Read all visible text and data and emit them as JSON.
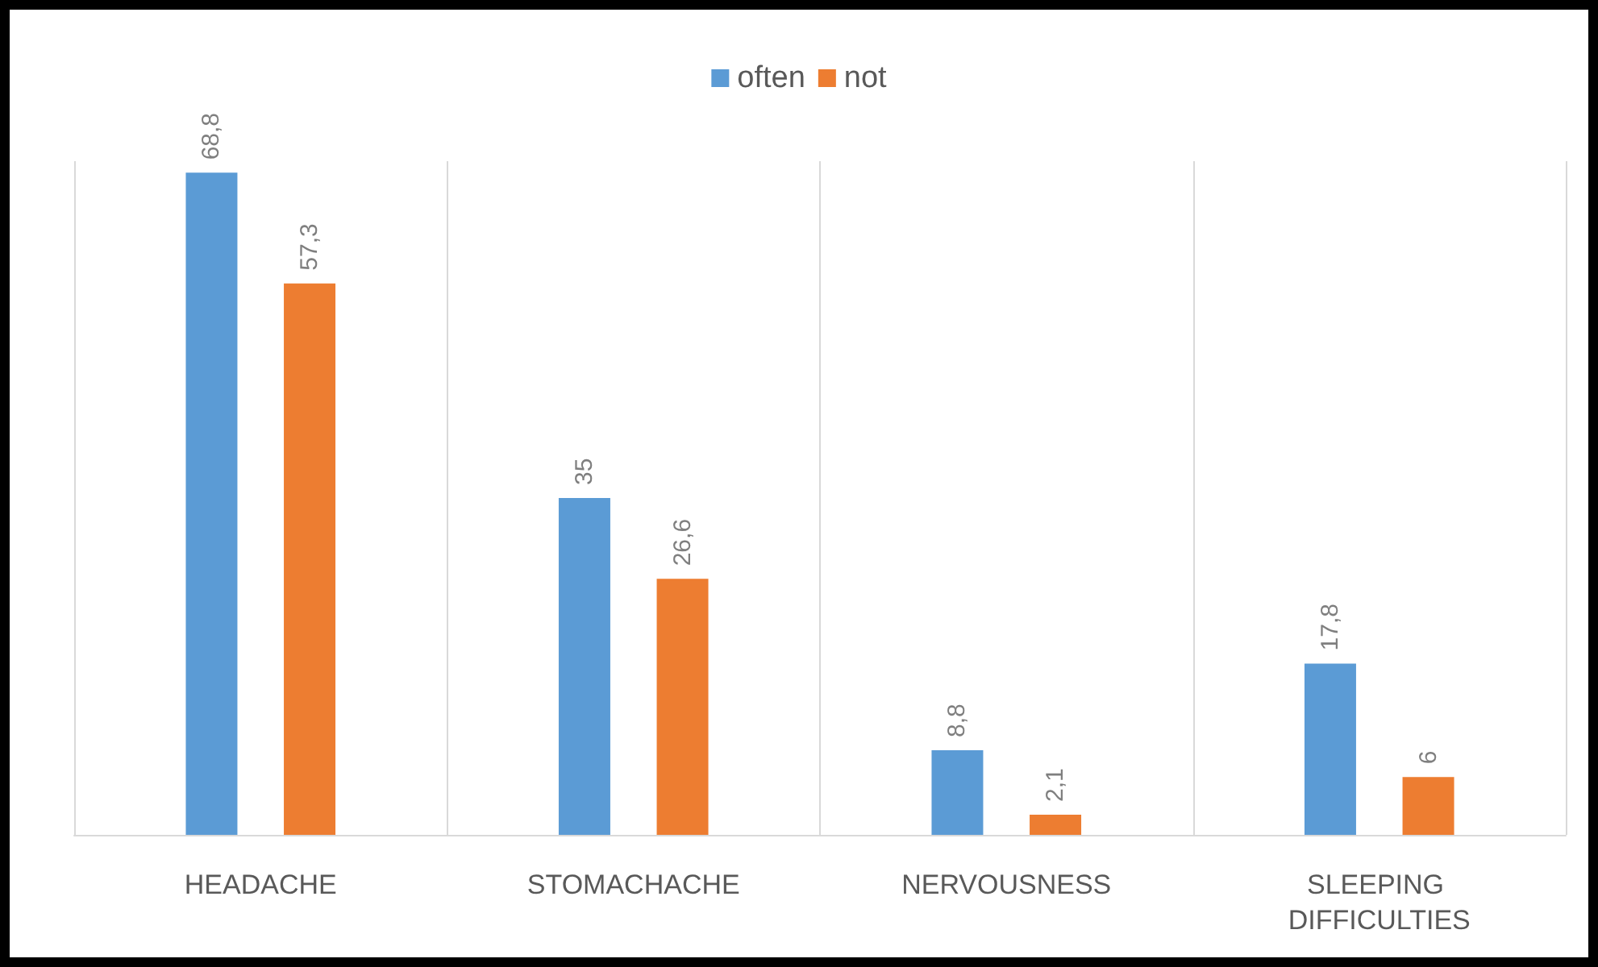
{
  "chart_data": {
    "type": "bar",
    "categories": [
      "HEADACHE",
      "STOMACHACHE",
      "NERVOUSNESS",
      "SLEEPING DIFFICULTIES"
    ],
    "series": [
      {
        "name": "often",
        "color": "#5b9bd5",
        "values": [
          68.8,
          35,
          8.8,
          17.8
        ],
        "value_labels": [
          "68,8",
          "35",
          "8,8",
          "17,8"
        ]
      },
      {
        "name": "not",
        "color": "#ed7d31",
        "values": [
          57.3,
          26.6,
          2.1,
          6
        ],
        "value_labels": [
          "57,3",
          "26,6",
          "2,1",
          "6"
        ]
      }
    ],
    "grid": "x",
    "legend": "top"
  }
}
